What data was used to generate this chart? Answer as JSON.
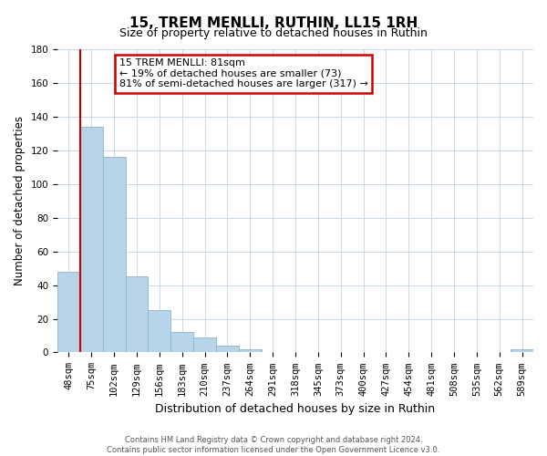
{
  "title": "15, TREM MENLLI, RUTHIN, LL15 1RH",
  "subtitle": "Size of property relative to detached houses in Ruthin",
  "xlabel": "Distribution of detached houses by size in Ruthin",
  "ylabel": "Number of detached properties",
  "bar_labels": [
    "48sqm",
    "75sqm",
    "102sqm",
    "129sqm",
    "156sqm",
    "183sqm",
    "210sqm",
    "237sqm",
    "264sqm",
    "291sqm",
    "318sqm",
    "345sqm",
    "373sqm",
    "400sqm",
    "427sqm",
    "454sqm",
    "481sqm",
    "508sqm",
    "535sqm",
    "562sqm",
    "589sqm"
  ],
  "bar_values": [
    48,
    134,
    116,
    45,
    25,
    12,
    9,
    4,
    2,
    0,
    0,
    0,
    0,
    0,
    0,
    0,
    0,
    0,
    0,
    0,
    2
  ],
  "bar_color": "#b8d4e8",
  "bar_edge_color": "#8ab4cc",
  "highlight_color": "#cc0000",
  "vertical_line_bar_index": 1,
  "ylim": [
    0,
    180
  ],
  "yticks": [
    0,
    20,
    40,
    60,
    80,
    100,
    120,
    140,
    160,
    180
  ],
  "annotation_title": "15 TREM MENLLI: 81sqm",
  "annotation_line1": "← 19% of detached houses are smaller (73)",
  "annotation_line2": "81% of semi-detached houses are larger (317) →",
  "footer_line1": "Contains HM Land Registry data © Crown copyright and database right 2024.",
  "footer_line2": "Contains public sector information licensed under the Open Government Licence v3.0.",
  "background_color": "#ffffff",
  "grid_color": "#c8d8ea",
  "title_fontsize": 11,
  "subtitle_fontsize": 9,
  "tick_fontsize": 7.5,
  "ylabel_fontsize": 8.5,
  "xlabel_fontsize": 9
}
